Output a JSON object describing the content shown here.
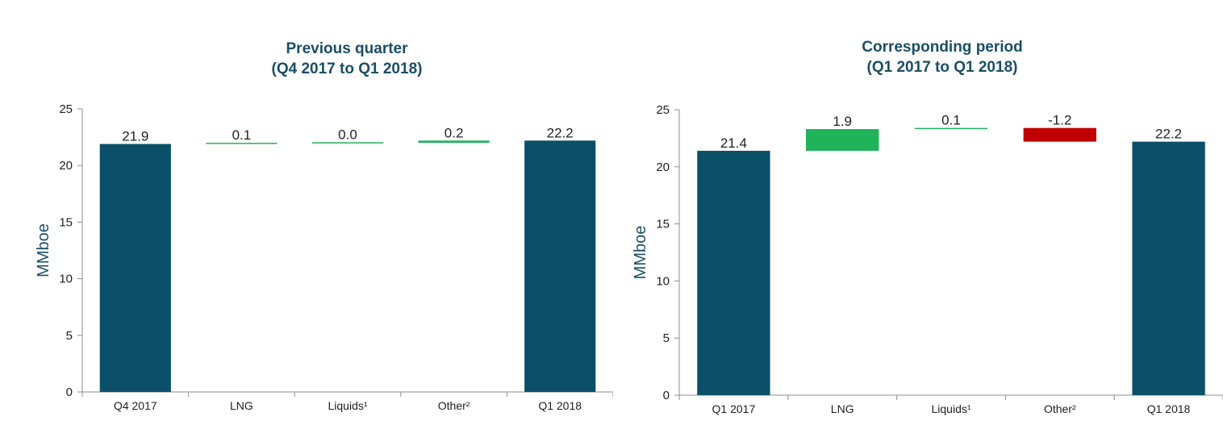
{
  "chart_data": [
    {
      "type": "bar",
      "subtype": "waterfall",
      "title": "Previous quarter",
      "subtitle": "(Q4 2017 to Q1 2018)",
      "ylabel": "MMboe",
      "ylim": [
        0,
        25
      ],
      "yticks": [
        "0",
        "5",
        "10",
        "15",
        "20",
        "25"
      ],
      "grid": false,
      "categories": [
        "Q4 2017",
        "LNG",
        "Liquids¹",
        "Other²",
        "Q1 2018"
      ],
      "values": [
        21.9,
        0.1,
        0.0,
        0.2,
        22.2
      ],
      "labels": [
        "21.9",
        "0.1",
        "0.0",
        "0.2",
        "22.2"
      ],
      "kinds": [
        "total",
        "delta",
        "delta",
        "delta",
        "total"
      ]
    },
    {
      "type": "bar",
      "subtype": "waterfall",
      "title": "Corresponding period",
      "subtitle": "(Q1 2017 to Q1 2018)",
      "ylabel": "MMboe",
      "ylim": [
        0,
        25
      ],
      "yticks": [
        "0",
        "5",
        "10",
        "15",
        "20",
        "25"
      ],
      "grid": false,
      "categories": [
        "Q1 2017",
        "LNG",
        "Liquids¹",
        "Other²",
        "Q1 2018"
      ],
      "values": [
        21.4,
        1.9,
        0.1,
        -1.2,
        22.2
      ],
      "labels": [
        "21.4",
        "1.9",
        "0.1",
        "-1.2",
        "22.2"
      ],
      "kinds": [
        "total",
        "delta",
        "delta",
        "delta",
        "total"
      ]
    }
  ],
  "colors": {
    "total": "#0b5068",
    "increase": "#1fb35a",
    "decrease": "#c00000",
    "text": "#1a4d66",
    "axis": "#8c8c8c"
  }
}
